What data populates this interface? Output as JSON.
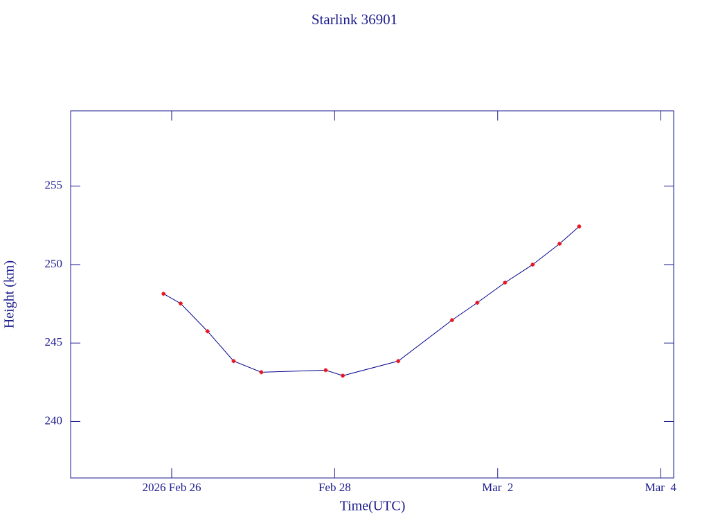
{
  "chart_data": {
    "type": "line",
    "title": "Starlink 36901",
    "x_label": "Time(UTC)",
    "y_label": "Height (km)",
    "x": [
      -0.1,
      0.11,
      0.44,
      0.76,
      1.1,
      1.89,
      2.1,
      2.78,
      3.44,
      3.75,
      4.09,
      4.43,
      4.76,
      5.0
    ],
    "series": [
      {
        "name": "Height",
        "color": "#00008b",
        "marker_color": "#e8141e",
        "values": [
          248.14,
          247.52,
          245.75,
          243.85,
          243.14,
          243.27,
          242.92,
          243.85,
          246.46,
          247.57,
          248.85,
          250.0,
          251.33,
          252.43
        ]
      }
    ],
    "xlim": [
      -1.24,
      6.16
    ],
    "ylim": [
      236.4,
      259.8
    ],
    "xticks": [
      {
        "value": 0,
        "label": "2026 Feb 26"
      },
      {
        "value": 2,
        "label": "Feb 28"
      },
      {
        "value": 4,
        "label": "Mar  2"
      },
      {
        "value": 6,
        "label": "Mar  4"
      }
    ],
    "yticks": [
      240,
      245,
      250,
      255
    ]
  }
}
